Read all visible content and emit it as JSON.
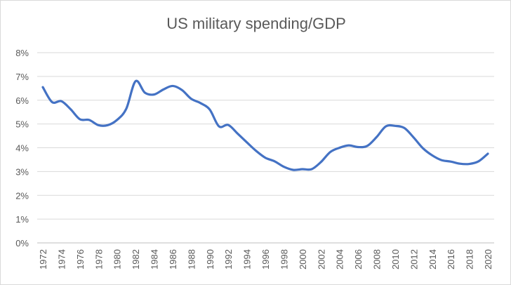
{
  "chart_data": {
    "type": "line",
    "title": "US military spending/GDP",
    "xlabel": "",
    "ylabel": "",
    "ylim": [
      0,
      8
    ],
    "y_tick_values": [
      0,
      1,
      2,
      3,
      4,
      5,
      6,
      7,
      8
    ],
    "y_tick_labels": [
      "0%",
      "1%",
      "2%",
      "3%",
      "4%",
      "5%",
      "6%",
      "7%",
      "8%"
    ],
    "x_tick_labels": [
      "1972",
      "1974",
      "1976",
      "1978",
      "1980",
      "1982",
      "1984",
      "1986",
      "1988",
      "1990",
      "1992",
      "1994",
      "1996",
      "1998",
      "2000",
      "2002",
      "2004",
      "2006",
      "2008",
      "2010",
      "2012",
      "2014",
      "2016",
      "2018",
      "2020"
    ],
    "grid": true,
    "legend": "none",
    "series": [
      {
        "color": "#4472C4",
        "x": [
          1972,
          1973,
          1974,
          1975,
          1976,
          1977,
          1978,
          1979,
          1980,
          1981,
          1982,
          1983,
          1984,
          1985,
          1986,
          1987,
          1988,
          1989,
          1990,
          1991,
          1992,
          1993,
          1994,
          1995,
          1996,
          1997,
          1998,
          1999,
          2000,
          2001,
          2002,
          2003,
          2004,
          2005,
          2006,
          2007,
          2008,
          2009,
          2010,
          2011,
          2012,
          2013,
          2014,
          2015,
          2016,
          2017,
          2018,
          2019,
          2020
        ],
        "values": [
          6.55,
          5.92,
          5.96,
          5.62,
          5.2,
          5.17,
          4.95,
          4.95,
          5.17,
          5.64,
          6.8,
          6.32,
          6.24,
          6.45,
          6.6,
          6.43,
          6.06,
          5.88,
          5.61,
          4.9,
          4.96,
          4.6,
          4.23,
          3.87,
          3.58,
          3.43,
          3.2,
          3.07,
          3.1,
          3.1,
          3.4,
          3.82,
          4.0,
          4.1,
          4.03,
          4.08,
          4.45,
          4.9,
          4.92,
          4.83,
          4.43,
          3.98,
          3.68,
          3.48,
          3.42,
          3.33,
          3.32,
          3.43,
          3.75
        ]
      }
    ]
  }
}
